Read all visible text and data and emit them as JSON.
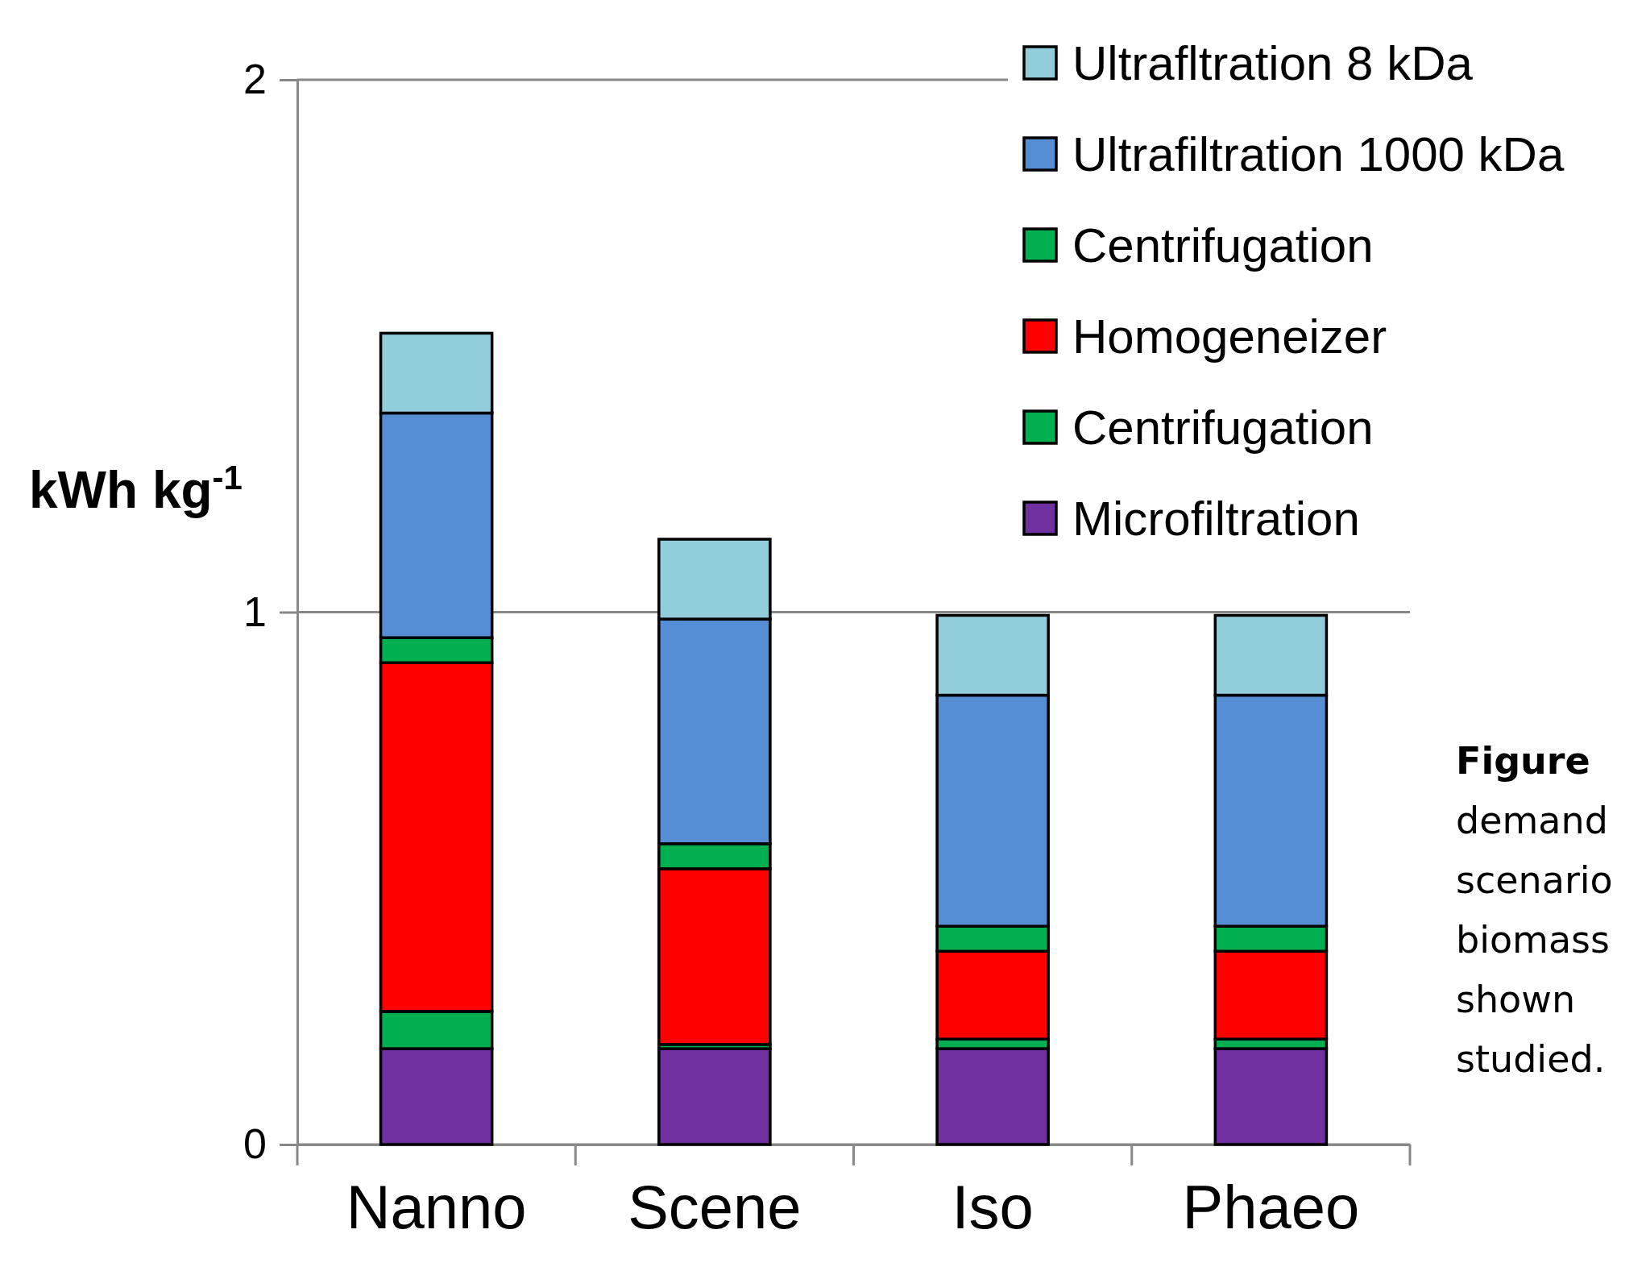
{
  "chart_data": {
    "type": "bar",
    "stacked": true,
    "ylabel": "kWh kg$^{-1}$",
    "categories": [
      "Nanno",
      "Scene",
      "Iso",
      "Phaeo"
    ],
    "ylim": [
      0,
      2
    ],
    "yticks": [
      0,
      1,
      2
    ],
    "grid": "y",
    "legend": "top right",
    "series": [
      {
        "name": "Microfiltration",
        "color": "#7030a0",
        "values": [
          0.18,
          0.18,
          0.18,
          0.18
        ]
      },
      {
        "name": "Centrifugation",
        "color": "#00b050",
        "values": [
          0.07,
          0.008,
          0.018,
          0.018
        ]
      },
      {
        "name": "Homogeneizer",
        "color": "#ff0000",
        "values": [
          0.655,
          0.33,
          0.165,
          0.165
        ]
      },
      {
        "name": "Centrifugation",
        "color": "#00b050",
        "values": [
          0.047,
          0.047,
          0.047,
          0.047
        ]
      },
      {
        "name": "Ultrafiltration 1000 kDa",
        "color": "#558ed5",
        "values": [
          0.422,
          0.422,
          0.434,
          0.434
        ]
      },
      {
        "name": "Ultrafltration 8 kDa",
        "color": "#92cddc",
        "values": [
          0.15,
          0.15,
          0.15,
          0.15
        ]
      }
    ],
    "annotations": [
      "Figure",
      "demand",
      "scenario",
      "biomass",
      "shown",
      "studied."
    ]
  }
}
